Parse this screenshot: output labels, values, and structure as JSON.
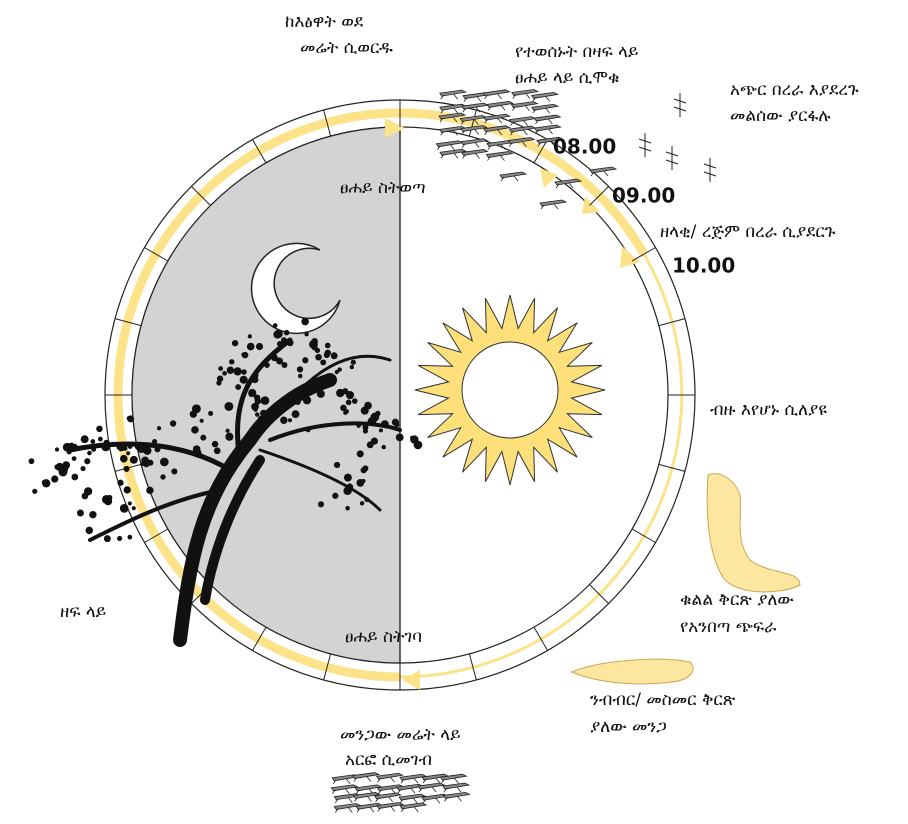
{
  "labels": [
    {
      "lines": [
        "ከእፅዋት ወደ",
        "መሬት ሲወርዱ"
      ]
    },
    {
      "lines": [
        "የተወሰኑት በዛፍ ላይ",
        "ፀሐይ ላይ ሲሞቁ"
      ]
    },
    {
      "lines": [
        "አጭር በረራ እያደረጉ",
        "መልሰው ያርፋሉ"
      ]
    },
    {
      "lines": [
        "ዘላቂ/ ረጅም በረራ ሲያደርጉ"
      ]
    },
    {
      "lines": [
        "ፀሐይ ስትወጣ"
      ]
    },
    {
      "lines": [
        "ብዙ እየሆኑ ሲለያዩ"
      ]
    },
    {
      "lines": [
        "ቁልል ቅርጽ ያለው",
        "የአንበጣ ጭፍራ"
      ]
    },
    {
      "lines": [
        "ዘፍ ላይ"
      ]
    },
    {
      "lines": [
        "ፀሐይ ስትገባ"
      ]
    },
    {
      "lines": [
        "ንብብር/ መስመር ቅርጽ",
        "ያለው መንጋ"
      ]
    },
    {
      "lines": [
        "መንጋው መሬት ላይ",
        "አርፎ ሲመገብ"
      ]
    }
  ],
  "times": [
    "08.00",
    "09.00",
    "10.00"
  ]
}
